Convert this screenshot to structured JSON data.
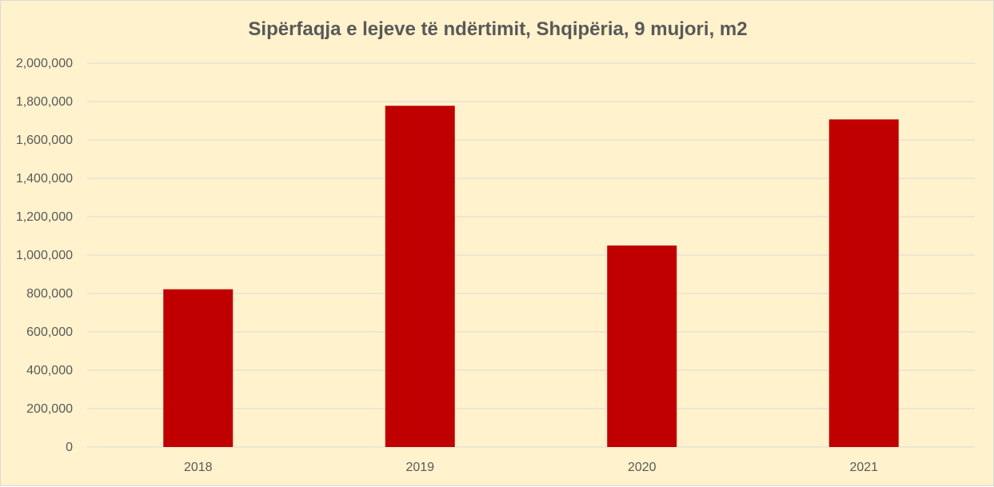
{
  "chart_data": {
    "type": "bar",
    "title": "Sipërfaqja e lejeve të ndërtimit, Shqipëria, 9 mujori, m2",
    "xlabel": "",
    "ylabel": "",
    "categories": [
      "2018",
      "2019",
      "2020",
      "2021"
    ],
    "series": [
      {
        "values": [
          822000,
          1778000,
          1050000,
          1707000
        ]
      }
    ],
    "ylim": [
      0,
      2000000
    ],
    "yticks": [
      0,
      200000,
      400000,
      600000,
      800000,
      1000000,
      1200000,
      1400000,
      1600000,
      1800000,
      2000000
    ],
    "ytick_labels": [
      "0",
      "200,000",
      "400,000",
      "600,000",
      "800,000",
      "1,000,000",
      "1,200,000",
      "1,400,000",
      "1,600,000",
      "1,800,000",
      "2,000,000"
    ],
    "grid": true,
    "legend": "none",
    "colors": {
      "bar": "#c00000",
      "background": "#fff2cc",
      "gridline": "#d9d9d9",
      "text": "#595959"
    }
  }
}
